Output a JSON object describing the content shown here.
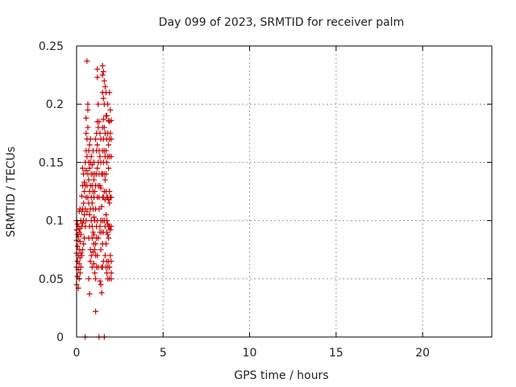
{
  "chart_data": {
    "type": "scatter",
    "title": "Day 099 of 2023, SRMTID for receiver palm",
    "xlabel": "GPS time / hours",
    "ylabel": "SRMTID / TECUs",
    "xlim": [
      0,
      24
    ],
    "ylim": [
      0,
      0.25
    ],
    "xticks": [
      0,
      5,
      10,
      15,
      20
    ],
    "xtick_labels": [
      "0",
      "5",
      "10",
      "15",
      "20"
    ],
    "yticks": [
      0,
      0.05,
      0.1,
      0.15,
      0.2,
      0.25
    ],
    "ytick_labels": [
      "0",
      "0.05",
      "0.1",
      "0.15",
      "0.2",
      "0.25"
    ],
    "grid": true,
    "marker": "+",
    "color": "#cc0000",
    "series": [
      {
        "points": [
          [
            0.0,
            0.045
          ],
          [
            0.0,
            0.06
          ],
          [
            0.0,
            0.072
          ],
          [
            0.0,
            0.083
          ],
          [
            0.0,
            0.092
          ],
          [
            0.0,
            0.1
          ],
          [
            0.05,
            0.052
          ],
          [
            0.05,
            0.065
          ],
          [
            0.05,
            0.078
          ],
          [
            0.05,
            0.088
          ],
          [
            0.05,
            0.097
          ],
          [
            0.1,
            0.042
          ],
          [
            0.1,
            0.058
          ],
          [
            0.1,
            0.07
          ],
          [
            0.1,
            0.086
          ],
          [
            0.1,
            0.095
          ],
          [
            0.15,
            0.05
          ],
          [
            0.15,
            0.063
          ],
          [
            0.15,
            0.075
          ],
          [
            0.15,
            0.09
          ],
          [
            0.15,
            0.108
          ],
          [
            0.2,
            0.055
          ],
          [
            0.2,
            0.068
          ],
          [
            0.2,
            0.082
          ],
          [
            0.2,
            0.093
          ],
          [
            0.2,
            0.11
          ],
          [
            0.25,
            0.06
          ],
          [
            0.25,
            0.072
          ],
          [
            0.25,
            0.088
          ],
          [
            0.25,
            0.1
          ],
          [
            0.3,
            0.07
          ],
          [
            0.3,
            0.095
          ],
          [
            0.3,
            0.108
          ],
          [
            0.3,
            0.121
          ],
          [
            0.35,
            0.075
          ],
          [
            0.35,
            0.098
          ],
          [
            0.35,
            0.11
          ],
          [
            0.35,
            0.13
          ],
          [
            0.35,
            0.145
          ],
          [
            0.4,
            0.08
          ],
          [
            0.4,
            0.1
          ],
          [
            0.4,
            0.115
          ],
          [
            0.4,
            0.14
          ],
          [
            0.45,
            0.085
          ],
          [
            0.45,
            0.105
          ],
          [
            0.45,
            0.125
          ],
          [
            0.45,
            0.133
          ],
          [
            0.5,
            0.0
          ],
          [
            0.5,
            0.095
          ],
          [
            0.5,
            0.11
          ],
          [
            0.5,
            0.13
          ],
          [
            0.5,
            0.15
          ],
          [
            0.55,
            0.1
          ],
          [
            0.55,
            0.12
          ],
          [
            0.55,
            0.143
          ],
          [
            0.55,
            0.16
          ],
          [
            0.55,
            0.175
          ],
          [
            0.55,
            0.188
          ],
          [
            0.6,
            0.237
          ],
          [
            0.6,
            0.17
          ],
          [
            0.6,
            0.155
          ],
          [
            0.6,
            0.13
          ],
          [
            0.6,
            0.108
          ],
          [
            0.65,
            0.195
          ],
          [
            0.65,
            0.2
          ],
          [
            0.65,
            0.18
          ],
          [
            0.65,
            0.14
          ],
          [
            0.65,
            0.12
          ],
          [
            0.7,
            0.16
          ],
          [
            0.7,
            0.15
          ],
          [
            0.7,
            0.135
          ],
          [
            0.7,
            0.115
          ],
          [
            0.7,
            0.085
          ],
          [
            0.7,
            0.05
          ],
          [
            0.75,
            0.165
          ],
          [
            0.75,
            0.145
          ],
          [
            0.75,
            0.125
          ],
          [
            0.75,
            0.105
          ],
          [
            0.75,
            0.095
          ],
          [
            0.75,
            0.037
          ],
          [
            0.8,
            0.17
          ],
          [
            0.8,
            0.15
          ],
          [
            0.8,
            0.13
          ],
          [
            0.8,
            0.11
          ],
          [
            0.8,
            0.075
          ],
          [
            0.8,
            0.065
          ],
          [
            0.85,
            0.155
          ],
          [
            0.85,
            0.14
          ],
          [
            0.85,
            0.12
          ],
          [
            0.85,
            0.1
          ],
          [
            0.85,
            0.07
          ],
          [
            0.9,
            0.148
          ],
          [
            0.9,
            0.13
          ],
          [
            0.9,
            0.115
          ],
          [
            0.9,
            0.095
          ],
          [
            0.9,
            0.085
          ],
          [
            0.9,
            0.06
          ],
          [
            0.95,
            0.16
          ],
          [
            0.95,
            0.14
          ],
          [
            0.95,
            0.125
          ],
          [
            0.95,
            0.11
          ],
          [
            0.95,
            0.09
          ],
          [
            0.95,
            0.073
          ],
          [
            1.0,
            0.15
          ],
          [
            1.0,
            0.135
          ],
          [
            1.0,
            0.12
          ],
          [
            1.0,
            0.103
          ],
          [
            1.0,
            0.088
          ],
          [
            1.0,
            0.08
          ],
          [
            1.0,
            0.063
          ],
          [
            1.05,
            0.14
          ],
          [
            1.05,
            0.125
          ],
          [
            1.05,
            0.1
          ],
          [
            1.05,
            0.075
          ],
          [
            1.05,
            0.055
          ],
          [
            1.1,
            0.022
          ],
          [
            1.1,
            0.05
          ],
          [
            1.1,
            0.07
          ],
          [
            1.1,
            0.08
          ],
          [
            1.1,
            0.11
          ],
          [
            1.1,
            0.13
          ],
          [
            1.1,
            0.17
          ],
          [
            1.15,
            0.06
          ],
          [
            1.15,
            0.085
          ],
          [
            1.15,
            0.095
          ],
          [
            1.15,
            0.14
          ],
          [
            1.15,
            0.16
          ],
          [
            1.15,
            0.175
          ],
          [
            1.2,
            0.223
          ],
          [
            1.2,
            0.23
          ],
          [
            1.2,
            0.185
          ],
          [
            1.2,
            0.165
          ],
          [
            1.2,
            0.145
          ],
          [
            1.2,
            0.12
          ],
          [
            1.2,
            0.1
          ],
          [
            1.2,
            0.07
          ],
          [
            1.25,
            0.2
          ],
          [
            1.25,
            0.18
          ],
          [
            1.25,
            0.15
          ],
          [
            1.25,
            0.13
          ],
          [
            1.25,
            0.085
          ],
          [
            1.25,
            0.06
          ],
          [
            1.3,
            0.185
          ],
          [
            1.3,
            0.16
          ],
          [
            1.3,
            0.14
          ],
          [
            1.3,
            0.12
          ],
          [
            1.3,
            0.11
          ],
          [
            1.3,
            0.0
          ],
          [
            1.35,
            0.175
          ],
          [
            1.35,
            0.155
          ],
          [
            1.35,
            0.13
          ],
          [
            1.35,
            0.095
          ],
          [
            1.35,
            0.09
          ],
          [
            1.35,
            0.048
          ],
          [
            1.4,
            0.17
          ],
          [
            1.4,
            0.15
          ],
          [
            1.4,
            0.128
          ],
          [
            1.4,
            0.1
          ],
          [
            1.4,
            0.075
          ],
          [
            1.4,
            0.045
          ],
          [
            1.45,
            0.14
          ],
          [
            1.45,
            0.112
          ],
          [
            1.45,
            0.09
          ],
          [
            1.45,
            0.06
          ],
          [
            1.45,
            0.038
          ],
          [
            1.5,
            0.233
          ],
          [
            1.5,
            0.225
          ],
          [
            1.5,
            0.21
          ],
          [
            1.5,
            0.18
          ],
          [
            1.5,
            0.16
          ],
          [
            1.5,
            0.14
          ],
          [
            1.5,
            0.12
          ],
          [
            1.5,
            0.1
          ],
          [
            1.5,
            0.08
          ],
          [
            1.5,
            0.06
          ],
          [
            1.55,
            0.228
          ],
          [
            1.55,
            0.205
          ],
          [
            1.55,
            0.187
          ],
          [
            1.55,
            0.17
          ],
          [
            1.55,
            0.15
          ],
          [
            1.55,
            0.12
          ],
          [
            1.55,
            0.09
          ],
          [
            1.55,
            0.065
          ],
          [
            1.6,
            0.22
          ],
          [
            1.6,
            0.2
          ],
          [
            1.6,
            0.18
          ],
          [
            1.6,
            0.16
          ],
          [
            1.6,
            0.14
          ],
          [
            1.6,
            0.125
          ],
          [
            1.6,
            0.1
          ],
          [
            1.6,
            0.0
          ],
          [
            1.65,
            0.215
          ],
          [
            1.65,
            0.175
          ],
          [
            1.65,
            0.155
          ],
          [
            1.65,
            0.135
          ],
          [
            1.65,
            0.118
          ],
          [
            1.65,
            0.095
          ],
          [
            1.65,
            0.07
          ],
          [
            1.7,
            0.21
          ],
          [
            1.7,
            0.19
          ],
          [
            1.7,
            0.16
          ],
          [
            1.7,
            0.14
          ],
          [
            1.7,
            0.125
          ],
          [
            1.7,
            0.105
          ],
          [
            1.7,
            0.08
          ],
          [
            1.7,
            0.06
          ],
          [
            1.75,
            0.19
          ],
          [
            1.75,
            0.17
          ],
          [
            1.75,
            0.15
          ],
          [
            1.75,
            0.12
          ],
          [
            1.75,
            0.1
          ],
          [
            1.75,
            0.09
          ],
          [
            1.75,
            0.065
          ],
          [
            1.75,
            0.055
          ],
          [
            1.8,
            0.2
          ],
          [
            1.8,
            0.175
          ],
          [
            1.8,
            0.155
          ],
          [
            1.8,
            0.12
          ],
          [
            1.8,
            0.097
          ],
          [
            1.8,
            0.088
          ],
          [
            1.8,
            0.06
          ],
          [
            1.8,
            0.05
          ],
          [
            1.85,
            0.186
          ],
          [
            1.85,
            0.165
          ],
          [
            1.85,
            0.145
          ],
          [
            1.85,
            0.118
          ],
          [
            1.85,
            0.095
          ],
          [
            1.85,
            0.085
          ],
          [
            1.85,
            0.065
          ],
          [
            1.9,
            0.21
          ],
          [
            1.9,
            0.185
          ],
          [
            1.9,
            0.17
          ],
          [
            1.9,
            0.155
          ],
          [
            1.9,
            0.125
          ],
          [
            1.9,
            0.115
          ],
          [
            1.9,
            0.095
          ],
          [
            1.9,
            0.06
          ],
          [
            1.9,
            0.05
          ],
          [
            1.95,
            0.195
          ],
          [
            1.95,
            0.175
          ],
          [
            1.95,
            0.12
          ],
          [
            1.95,
            0.092
          ],
          [
            1.95,
            0.07
          ],
          [
            2.0,
            0.186
          ],
          [
            2.0,
            0.17
          ],
          [
            2.0,
            0.155
          ],
          [
            2.0,
            0.12
          ],
          [
            2.0,
            0.095
          ],
          [
            2.0,
            0.065
          ],
          [
            2.0,
            0.055
          ],
          [
            2.0,
            0.05
          ]
        ]
      }
    ]
  }
}
